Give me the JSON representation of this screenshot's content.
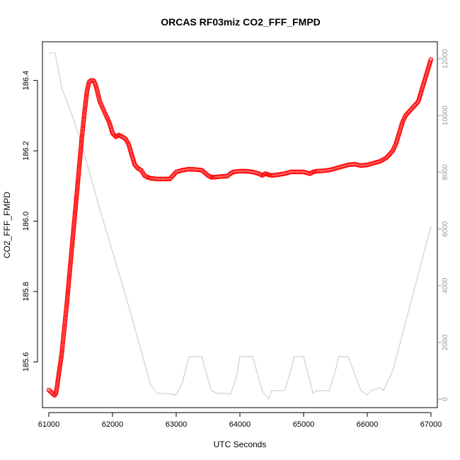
{
  "chart_data": {
    "type": "scatter",
    "title": "ORCAS RF03miz CO2_FFF_FMPD",
    "xlabel": "UTC Seconds",
    "ylabel": "CO2_FFF_FMPD",
    "xlim": [
      60900,
      67100
    ],
    "ylim": [
      185.47,
      186.51
    ],
    "x_ticks": [
      61000,
      62000,
      63000,
      64000,
      65000,
      66000,
      67000
    ],
    "y_ticks": [
      185.6,
      185.8,
      186.0,
      186.2,
      186.4
    ],
    "y2lim": [
      -300,
      12600
    ],
    "y2_ticks": [
      0,
      2000,
      4000,
      6000,
      8000,
      10000,
      12000
    ],
    "grid": false,
    "colors": {
      "points": "#ff0000",
      "secondary_line": "#c8c8c8",
      "secondary_axis": "#999999",
      "frame": "#000000"
    },
    "series": [
      {
        "marker": "open-circle",
        "points": [
          [
            61000,
            185.52
          ],
          [
            61030,
            185.515
          ],
          [
            61060,
            185.51
          ],
          [
            61090,
            185.505
          ],
          [
            61110,
            185.51
          ],
          [
            61130,
            185.53
          ],
          [
            61160,
            185.57
          ],
          [
            61200,
            185.62
          ],
          [
            61240,
            185.69
          ],
          [
            61280,
            185.76
          ],
          [
            61320,
            185.84
          ],
          [
            61360,
            185.92
          ],
          [
            61400,
            186.0
          ],
          [
            61440,
            186.08
          ],
          [
            61480,
            186.16
          ],
          [
            61520,
            186.24
          ],
          [
            61560,
            186.31
          ],
          [
            61600,
            186.37
          ],
          [
            61630,
            186.395
          ],
          [
            61660,
            186.4
          ],
          [
            61700,
            186.4
          ],
          [
            61730,
            186.39
          ],
          [
            61760,
            186.37
          ],
          [
            61800,
            186.34
          ],
          [
            61850,
            186.32
          ],
          [
            61900,
            186.3
          ],
          [
            61950,
            186.28
          ],
          [
            62000,
            186.25
          ],
          [
            62050,
            186.24
          ],
          [
            62100,
            186.245
          ],
          [
            62150,
            186.24
          ],
          [
            62200,
            186.235
          ],
          [
            62250,
            186.22
          ],
          [
            62300,
            186.19
          ],
          [
            62350,
            186.16
          ],
          [
            62400,
            186.15
          ],
          [
            62450,
            186.145
          ],
          [
            62500,
            186.13
          ],
          [
            62550,
            186.125
          ],
          [
            62600,
            186.122
          ],
          [
            62700,
            186.12
          ],
          [
            62800,
            186.12
          ],
          [
            62900,
            186.12
          ],
          [
            63000,
            186.14
          ],
          [
            63100,
            186.145
          ],
          [
            63200,
            186.148
          ],
          [
            63300,
            186.147
          ],
          [
            63400,
            186.145
          ],
          [
            63500,
            186.13
          ],
          [
            63550,
            186.125
          ],
          [
            63600,
            186.125
          ],
          [
            63700,
            186.127
          ],
          [
            63800,
            186.128
          ],
          [
            63850,
            186.135
          ],
          [
            63900,
            186.14
          ],
          [
            64000,
            186.142
          ],
          [
            64100,
            186.142
          ],
          [
            64200,
            186.14
          ],
          [
            64300,
            186.135
          ],
          [
            64350,
            186.13
          ],
          [
            64400,
            186.135
          ],
          [
            64450,
            186.132
          ],
          [
            64500,
            186.13
          ],
          [
            64600,
            186.132
          ],
          [
            64700,
            186.135
          ],
          [
            64800,
            186.14
          ],
          [
            64900,
            186.14
          ],
          [
            65000,
            186.14
          ],
          [
            65100,
            186.135
          ],
          [
            65150,
            186.14
          ],
          [
            65200,
            186.142
          ],
          [
            65300,
            186.143
          ],
          [
            65400,
            186.145
          ],
          [
            65500,
            186.15
          ],
          [
            65600,
            186.155
          ],
          [
            65700,
            186.16
          ],
          [
            65800,
            186.162
          ],
          [
            65900,
            186.158
          ],
          [
            66000,
            186.16
          ],
          [
            66100,
            186.165
          ],
          [
            66200,
            186.17
          ],
          [
            66300,
            186.18
          ],
          [
            66400,
            186.2
          ],
          [
            66450,
            186.22
          ],
          [
            66500,
            186.25
          ],
          [
            66550,
            186.28
          ],
          [
            66600,
            186.3
          ],
          [
            66700,
            186.32
          ],
          [
            66800,
            186.34
          ],
          [
            66850,
            186.37
          ],
          [
            66900,
            186.4
          ],
          [
            66950,
            186.43
          ],
          [
            67000,
            186.46
          ]
        ]
      },
      {
        "type": "line",
        "axis": "right",
        "points": [
          [
            61000,
            12200
          ],
          [
            61100,
            12200
          ],
          [
            61200,
            11000
          ],
          [
            61400,
            9800
          ],
          [
            61600,
            8300
          ],
          [
            61800,
            6700
          ],
          [
            62000,
            5200
          ],
          [
            62200,
            3700
          ],
          [
            62400,
            2100
          ],
          [
            62600,
            500
          ],
          [
            62700,
            200
          ],
          [
            62850,
            200
          ],
          [
            63000,
            150
          ],
          [
            63100,
            600
          ],
          [
            63200,
            1500
          ],
          [
            63400,
            1500
          ],
          [
            63550,
            300
          ],
          [
            63650,
            200
          ],
          [
            63800,
            200
          ],
          [
            63850,
            150
          ],
          [
            63950,
            800
          ],
          [
            64000,
            1500
          ],
          [
            64200,
            1500
          ],
          [
            64350,
            300
          ],
          [
            64450,
            0
          ],
          [
            64500,
            300
          ],
          [
            64700,
            300
          ],
          [
            64800,
            1000
          ],
          [
            64850,
            1500
          ],
          [
            65000,
            1500
          ],
          [
            65150,
            200
          ],
          [
            65200,
            300
          ],
          [
            65400,
            300
          ],
          [
            65500,
            1000
          ],
          [
            65550,
            1500
          ],
          [
            65700,
            1500
          ],
          [
            65900,
            300
          ],
          [
            66000,
            150
          ],
          [
            66050,
            300
          ],
          [
            66200,
            400
          ],
          [
            66250,
            300
          ],
          [
            66400,
            1000
          ],
          [
            66600,
            2700
          ],
          [
            66800,
            4400
          ],
          [
            67000,
            6100
          ]
        ]
      }
    ]
  }
}
